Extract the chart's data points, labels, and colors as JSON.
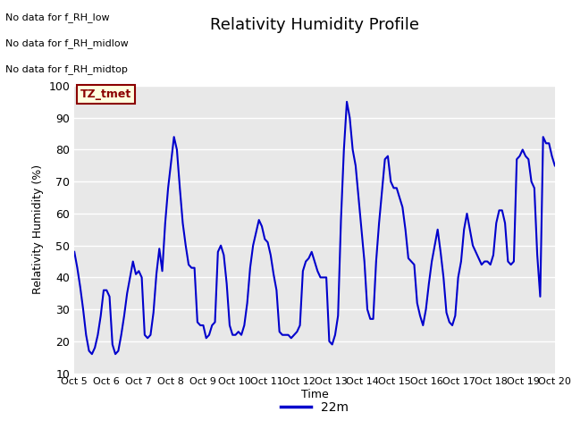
{
  "title": "Relativity Humidity Profile",
  "xlabel": "Time",
  "ylabel": "Relativity Humidity (%)",
  "ylim": [
    10,
    100
  ],
  "yticks": [
    10,
    20,
    30,
    40,
    50,
    60,
    70,
    80,
    90,
    100
  ],
  "x_tick_labels": [
    "Oct 5",
    "Oct 6",
    "Oct 7",
    "Oct 8",
    "Oct 9",
    "Oct 10",
    "Oct 11",
    "Oct 12",
    "Oct 13",
    "Oct 14",
    "Oct 15",
    "Oct 16",
    "Oct 17",
    "Oct 18",
    "Oct 19",
    "Oct 20"
  ],
  "line_color": "#0000cc",
  "line_label": "22m",
  "bg_color": "#e8e8e8",
  "annotations": [
    "No data for f_RH_low",
    "No data for f_RH_midlow",
    "No data for f_RH_midtop"
  ],
  "tz_label": "TZ_tmet",
  "y_values": [
    48,
    43,
    37,
    30,
    22,
    17,
    16,
    18,
    22,
    28,
    36,
    36,
    34,
    19,
    16,
    17,
    22,
    28,
    35,
    40,
    45,
    41,
    42,
    40,
    22,
    21,
    22,
    29,
    41,
    49,
    42,
    57,
    68,
    76,
    84,
    80,
    68,
    57,
    50,
    44,
    43,
    43,
    26,
    25,
    25,
    21,
    22,
    25,
    26,
    48,
    50,
    47,
    38,
    25,
    22,
    22,
    23,
    22,
    25,
    32,
    43,
    50,
    54,
    58,
    56,
    52,
    51,
    47,
    41,
    36,
    23,
    22,
    22,
    22,
    21,
    22,
    23,
    25,
    42,
    45,
    46,
    48,
    45,
    42,
    40,
    40,
    40,
    20,
    19,
    22,
    28,
    58,
    80,
    95,
    90,
    80,
    75,
    65,
    55,
    45,
    30,
    27,
    27,
    45,
    57,
    67,
    77,
    78,
    70,
    68,
    68,
    65,
    62,
    55,
    46,
    45,
    44,
    32,
    28,
    25,
    30,
    38,
    45,
    50,
    55,
    48,
    40,
    29,
    26,
    25,
    28,
    40,
    45,
    55,
    60,
    55,
    50,
    48,
    46,
    44,
    45,
    45,
    44,
    47,
    57,
    61,
    61,
    57,
    45,
    44,
    45,
    77,
    78,
    80,
    78,
    77,
    70,
    68,
    47,
    34,
    84,
    82,
    82,
    78,
    75
  ]
}
